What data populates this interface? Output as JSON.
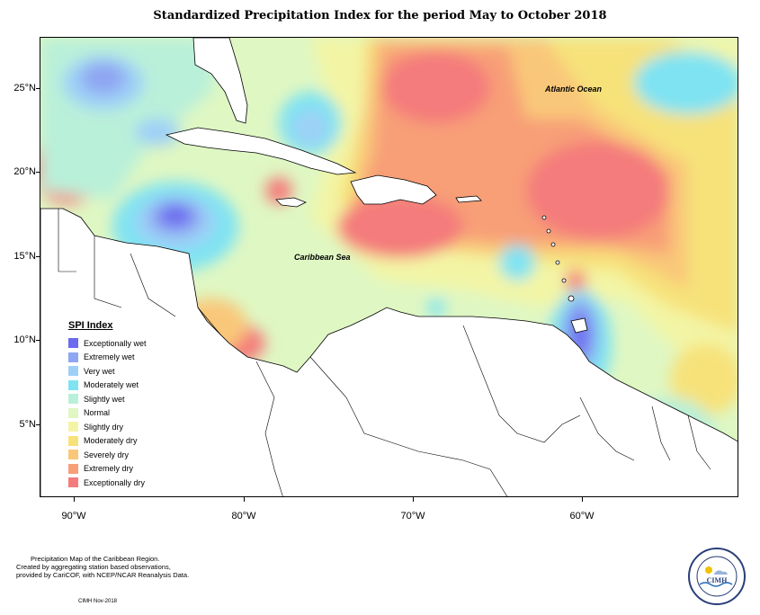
{
  "title": "Standardized Precipitation Index for the period May to October 2018",
  "axes": {
    "lat_labels": [
      "25°N",
      "20°N",
      "15°N",
      "10°N",
      "5°N"
    ],
    "lon_labels": [
      "90°W",
      "80°W",
      "70°W",
      "60°W"
    ]
  },
  "map_labels": {
    "atlantic": "Atlantic Ocean",
    "caribbean": "Caribbean Sea"
  },
  "legend": {
    "title": "SPI Index",
    "items": [
      {
        "label": "Exceptionally wet",
        "color": "#6b6bef"
      },
      {
        "label": "Extremely wet",
        "color": "#8fa6f2"
      },
      {
        "label": "Very wet",
        "color": "#9ed0f7"
      },
      {
        "label": "Moderately wet",
        "color": "#7fe3f2"
      },
      {
        "label": "Slightly wet",
        "color": "#b9f0d9"
      },
      {
        "label": "Normal",
        "color": "#dff7c3"
      },
      {
        "label": "Slightly dry",
        "color": "#f3f5a5"
      },
      {
        "label": "Moderately dry",
        "color": "#f7e27a"
      },
      {
        "label": "Severely dry",
        "color": "#f9c779"
      },
      {
        "label": "Extremely dry",
        "color": "#f89f77"
      },
      {
        "label": "Exceptionally dry",
        "color": "#f47c7c"
      }
    ]
  },
  "footer": {
    "line1": "Precipitation Map of the Caribbean Region.",
    "line2": "Created by aggregating station based observations,",
    "line3": "provided by CariCOF, with NCEP/NCAR Reanalysis Data.",
    "date": "CIMH Nov-2018"
  },
  "logo": {
    "text": "CIMH"
  }
}
